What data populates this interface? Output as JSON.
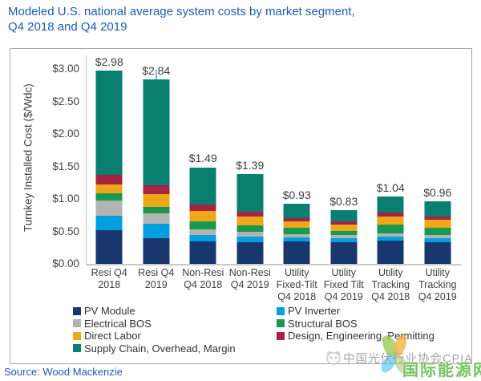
{
  "title": {
    "line1": "Modeled U.S. national average system costs by market segment,",
    "line2": "Q4 2018 and Q4 2019"
  },
  "source": "Source: Wood Mackenzie",
  "watermark": {
    "cpia_text": "中国光伏行业协会CPIA",
    "energy_text": "国际能源网"
  },
  "colors": {
    "title_blue": "#1E5CB3",
    "axis_text": "#404040",
    "axis_line": "#BFBFBF",
    "chart_border": "#A6A6A6",
    "value_label": "#3D3D3D",
    "error_marker": "#8EA9DB",
    "watermark_gray": "#9B9B9B",
    "watermark_green": "#60B646"
  },
  "chart_data": {
    "type": "bar",
    "subtype": "stacked",
    "title": "Modeled U.S. national average system costs by market segment, Q4 2018 and Q4 2019",
    "xlabel": "",
    "ylabel": "Turnkey Installed Cost ($/Wdc)",
    "ylim": [
      0,
      3.0
    ],
    "grid": false,
    "legend_position": "bottom",
    "yticks": [
      0,
      0.5,
      1.0,
      1.5,
      2.0,
      2.5,
      3.0
    ],
    "ytick_labels": [
      "$0.00",
      "$0.50",
      "$1.00",
      "$1.50",
      "$2.00",
      "$2.50",
      "$3.00"
    ],
    "categories": [
      [
        "Resi Q4",
        "2018"
      ],
      [
        "Resi Q4",
        "2019"
      ],
      [
        "Non-Resi",
        "Q4 2018"
      ],
      [
        "Non-Resi",
        "Q4 2019"
      ],
      [
        "Utility",
        "Fixed-Tilt",
        "Q4 2018"
      ],
      [
        "Utility",
        "Fixed Tilt",
        "Q4 2019"
      ],
      [
        "Utility",
        "Tracking",
        "Q4 2018"
      ],
      [
        "Utility",
        "Tracking",
        "Q4 2019"
      ]
    ],
    "series": [
      {
        "name": "PV Module",
        "color": "#17376E",
        "values": [
          0.52,
          0.39,
          0.35,
          0.34,
          0.35,
          0.34,
          0.36,
          0.34
        ]
      },
      {
        "name": "PV Inverter",
        "color": "#009FDE",
        "values": [
          0.22,
          0.23,
          0.09,
          0.08,
          0.06,
          0.05,
          0.06,
          0.05
        ]
      },
      {
        "name": "Electrical BOS",
        "color": "#B3B3B3",
        "values": [
          0.24,
          0.16,
          0.09,
          0.07,
          0.05,
          0.05,
          0.05,
          0.05
        ]
      },
      {
        "name": "Structural BOS",
        "color": "#18994F",
        "values": [
          0.11,
          0.1,
          0.12,
          0.1,
          0.1,
          0.07,
          0.14,
          0.12
        ]
      },
      {
        "name": "Direct Labor",
        "color": "#EDA719",
        "values": [
          0.14,
          0.19,
          0.17,
          0.14,
          0.09,
          0.1,
          0.12,
          0.12
        ]
      },
      {
        "name": "Design, Engineering, Permitting",
        "color": "#A62441",
        "values": [
          0.14,
          0.14,
          0.09,
          0.07,
          0.06,
          0.05,
          0.06,
          0.05
        ]
      },
      {
        "name": "Supply Chain, Overhead, Margin",
        "color": "#097E71",
        "values": [
          1.61,
          1.63,
          0.58,
          0.59,
          0.22,
          0.17,
          0.25,
          0.23
        ]
      }
    ],
    "totals": [
      "$2.98",
      "$2.84",
      "$1.49",
      "$1.39",
      "$0.93",
      "$0.83",
      "$1.04",
      "$0.96"
    ],
    "legend_columns": [
      [
        "PV Module",
        "Electrical BOS",
        "Direct Labor",
        "Supply Chain, Overhead, Margin"
      ],
      [
        "PV Inverter",
        "Structural BOS",
        "Design, Engineering, Permitting"
      ]
    ]
  }
}
